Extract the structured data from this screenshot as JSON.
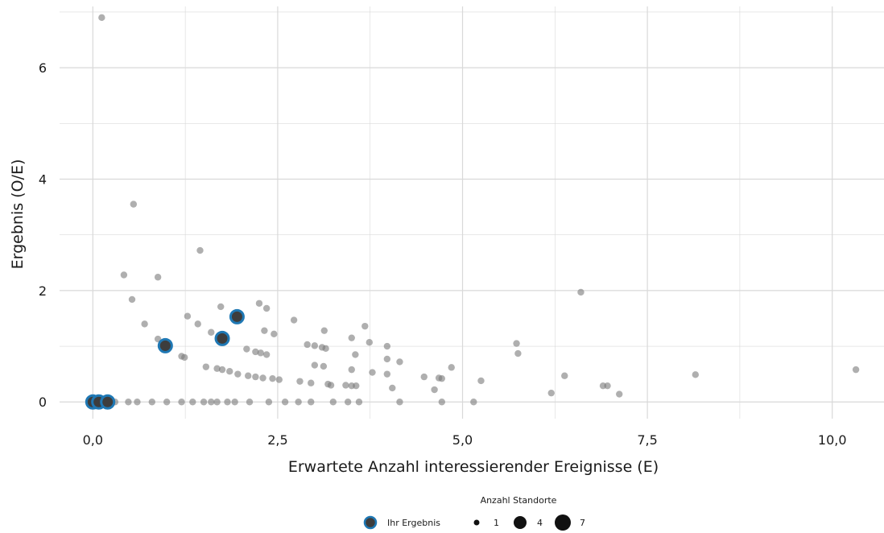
{
  "chart_data": {
    "type": "scatter",
    "title": "",
    "xlabel": "Erwartete Anzahl interessierender Ereignisse (E)",
    "ylabel": "Ergebnis (O/E)",
    "xlim": [
      -0.45,
      10.7
    ],
    "ylim": [
      -0.3,
      7.1
    ],
    "x_ticks": [
      {
        "value": 0,
        "label": "0,0"
      },
      {
        "value": 2.5,
        "label": "2,5"
      },
      {
        "value": 5,
        "label": "5,0"
      },
      {
        "value": 7.5,
        "label": "7,5"
      },
      {
        "value": 10,
        "label": "10,0"
      }
    ],
    "y_ticks": [
      {
        "value": 0,
        "label": "0"
      },
      {
        "value": 2,
        "label": "2"
      },
      {
        "value": 4,
        "label": "4"
      },
      {
        "value": 6,
        "label": "6"
      }
    ],
    "grid": true,
    "legend_position": "bottom",
    "legend": {
      "size_title": "Anzahl Standorte",
      "highlight_label": "Ihr Ergebnis",
      "size_items": [
        {
          "label": "1",
          "size": 1
        },
        {
          "label": "4",
          "size": 4
        },
        {
          "label": "7",
          "size": 7
        }
      ]
    },
    "colors": {
      "point": "#7a7a7a",
      "highlight_fill": "#3d3d3d",
      "highlight_ring": "#1f78b4",
      "grid": "#d9d9d9"
    },
    "series": [
      {
        "values": [
          [
            0.12,
            6.9
          ],
          [
            0.55,
            3.55
          ],
          [
            1.45,
            2.72
          ],
          [
            0.42,
            2.28
          ],
          [
            0.88,
            2.24
          ],
          [
            0.53,
            1.84
          ],
          [
            6.6,
            1.97
          ],
          [
            2.25,
            1.77
          ],
          [
            1.73,
            1.71
          ],
          [
            2.35,
            1.68
          ],
          [
            0.7,
            1.4
          ],
          [
            1.28,
            1.54
          ],
          [
            1.42,
            1.4
          ],
          [
            1.6,
            1.25
          ],
          [
            2.72,
            1.47
          ],
          [
            2.32,
            1.28
          ],
          [
            2.45,
            1.22
          ],
          [
            3.13,
            1.28
          ],
          [
            3.68,
            1.36
          ],
          [
            3.5,
            1.15
          ],
          [
            3.74,
            1.07
          ],
          [
            5.73,
            1.05
          ],
          [
            5.75,
            0.87
          ],
          [
            0.88,
            1.13
          ],
          [
            1.2,
            0.82
          ],
          [
            1.24,
            0.8
          ],
          [
            1.53,
            0.63
          ],
          [
            1.68,
            0.6
          ],
          [
            1.75,
            0.58
          ],
          [
            1.85,
            0.55
          ],
          [
            1.96,
            0.5
          ],
          [
            2.08,
            0.95
          ],
          [
            2.2,
            0.9
          ],
          [
            2.27,
            0.88
          ],
          [
            2.35,
            0.85
          ],
          [
            2.1,
            0.47
          ],
          [
            2.2,
            0.45
          ],
          [
            2.3,
            0.43
          ],
          [
            2.43,
            0.42
          ],
          [
            2.52,
            0.4
          ],
          [
            2.9,
            1.03
          ],
          [
            3.0,
            1.01
          ],
          [
            3.1,
            0.98
          ],
          [
            3.15,
            0.96
          ],
          [
            3.55,
            0.85
          ],
          [
            3.98,
            1.0
          ],
          [
            3.98,
            0.77
          ],
          [
            4.15,
            0.72
          ],
          [
            3.0,
            0.66
          ],
          [
            3.12,
            0.64
          ],
          [
            2.8,
            0.37
          ],
          [
            2.95,
            0.34
          ],
          [
            3.18,
            0.32
          ],
          [
            3.22,
            0.3
          ],
          [
            3.42,
            0.3
          ],
          [
            3.5,
            0.29
          ],
          [
            3.56,
            0.29
          ],
          [
            3.5,
            0.58
          ],
          [
            3.78,
            0.53
          ],
          [
            3.98,
            0.5
          ],
          [
            4.05,
            0.25
          ],
          [
            4.48,
            0.45
          ],
          [
            4.62,
            0.22
          ],
          [
            4.68,
            0.43
          ],
          [
            4.72,
            0.42
          ],
          [
            4.85,
            0.62
          ],
          [
            5.25,
            0.38
          ],
          [
            6.2,
            0.16
          ],
          [
            6.38,
            0.47
          ],
          [
            6.9,
            0.29
          ],
          [
            6.96,
            0.29
          ],
          [
            7.12,
            0.14
          ],
          [
            8.15,
            0.49
          ],
          [
            10.32,
            0.58
          ],
          [
            0.3,
            0.0
          ],
          [
            0.48,
            0.0
          ],
          [
            0.6,
            0.0
          ],
          [
            0.8,
            0.0
          ],
          [
            1.0,
            0.0
          ],
          [
            1.2,
            0.0
          ],
          [
            1.35,
            0.0
          ],
          [
            1.5,
            0.0
          ],
          [
            1.6,
            0.0
          ],
          [
            1.68,
            0.0
          ],
          [
            1.82,
            0.0
          ],
          [
            1.92,
            0.0
          ],
          [
            2.12,
            0.0
          ],
          [
            2.38,
            0.0
          ],
          [
            2.6,
            0.0
          ],
          [
            2.78,
            0.0
          ],
          [
            2.95,
            0.0
          ],
          [
            3.25,
            0.0
          ],
          [
            3.45,
            0.0
          ],
          [
            3.6,
            0.0
          ],
          [
            4.15,
            0.0
          ],
          [
            4.72,
            0.0
          ],
          [
            5.15,
            0.0
          ]
        ]
      },
      {
        "name": "Ihr Ergebnis",
        "values": [
          [
            0.0,
            0.0
          ],
          [
            0.08,
            0.0
          ],
          [
            0.2,
            0.0
          ],
          [
            0.98,
            1.01
          ],
          [
            1.75,
            1.14
          ],
          [
            1.95,
            1.53
          ]
        ]
      }
    ]
  }
}
